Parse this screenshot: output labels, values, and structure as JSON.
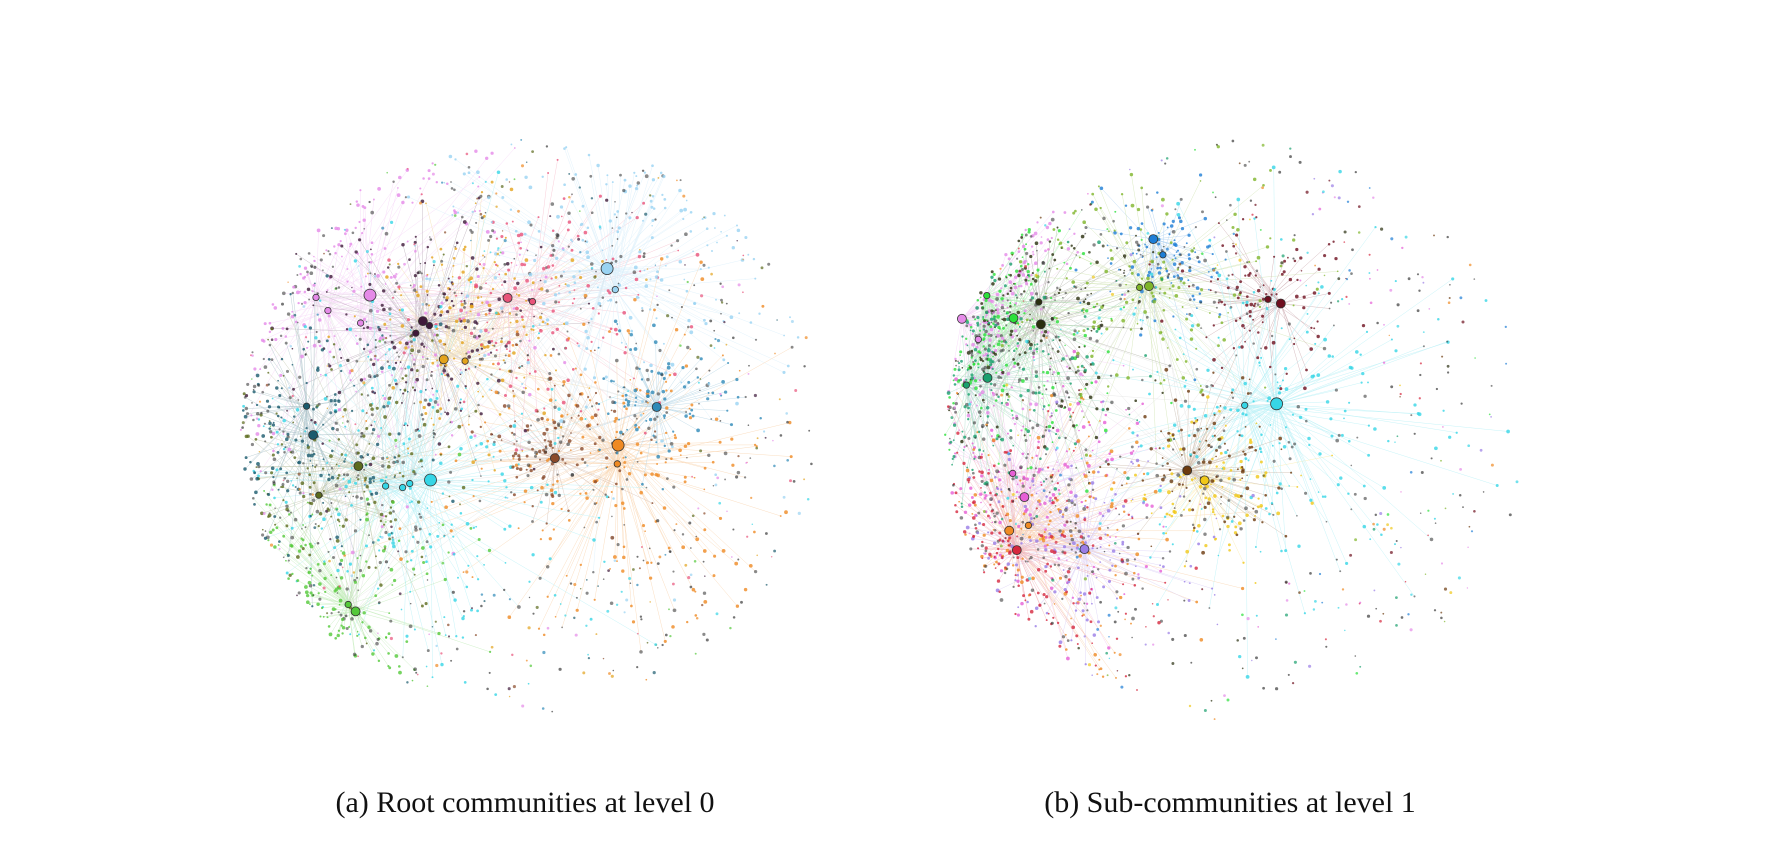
{
  "figure": {
    "panels": [
      {
        "caption": "(a) Root communities at level 0",
        "communities": [
          {
            "color": "#e58ae8",
            "hubs": 4,
            "spread": "large"
          },
          {
            "color": "#3f1a3a",
            "hubs": 3,
            "spread": "medium"
          },
          {
            "color": "#e3a31c",
            "hubs": 2,
            "spread": "medium"
          },
          {
            "color": "#e8537a",
            "hubs": 2,
            "spread": "medium"
          },
          {
            "color": "#9ad3f2",
            "hubs": 2,
            "spread": "large"
          },
          {
            "color": "#ef8a23",
            "hubs": 2,
            "spread": "large"
          },
          {
            "color": "#36d6e6",
            "hubs": 4,
            "spread": "large"
          },
          {
            "color": "#5c6b1e",
            "hubs": 2,
            "spread": "medium"
          },
          {
            "color": "#54c93a",
            "hubs": 2,
            "spread": "medium"
          },
          {
            "color": "#1c5b6e",
            "hubs": 2,
            "spread": "medium"
          },
          {
            "color": "#8a4a2a",
            "hubs": 1,
            "spread": "small"
          },
          {
            "color": "#2f8ab8",
            "hubs": 1,
            "spread": "small"
          }
        ]
      },
      {
        "caption": "(b) Sub-communities at level 1",
        "communities": [
          {
            "color": "#e58ae8",
            "hubs": 2,
            "spread": "medium"
          },
          {
            "color": "#2a2f0f",
            "hubs": 2,
            "spread": "medium"
          },
          {
            "color": "#2be03a",
            "hubs": 2,
            "spread": "medium"
          },
          {
            "color": "#1e7ed6",
            "hubs": 2,
            "spread": "small"
          },
          {
            "color": "#7fb52a",
            "hubs": 2,
            "spread": "medium"
          },
          {
            "color": "#6e0f1e",
            "hubs": 2,
            "spread": "small"
          },
          {
            "color": "#e65fd6",
            "hubs": 2,
            "spread": "medium"
          },
          {
            "color": "#ef8a23",
            "hubs": 2,
            "spread": "medium"
          },
          {
            "color": "#f0c818",
            "hubs": 1,
            "spread": "small"
          },
          {
            "color": "#36d6e6",
            "hubs": 2,
            "spread": "large"
          },
          {
            "color": "#1aa06e",
            "hubs": 2,
            "spread": "medium"
          },
          {
            "color": "#9a7de6",
            "hubs": 1,
            "spread": "medium"
          },
          {
            "color": "#d6283e",
            "hubs": 1,
            "spread": "medium"
          },
          {
            "color": "#6c3a0e",
            "hubs": 1,
            "spread": "small"
          }
        ]
      }
    ]
  }
}
